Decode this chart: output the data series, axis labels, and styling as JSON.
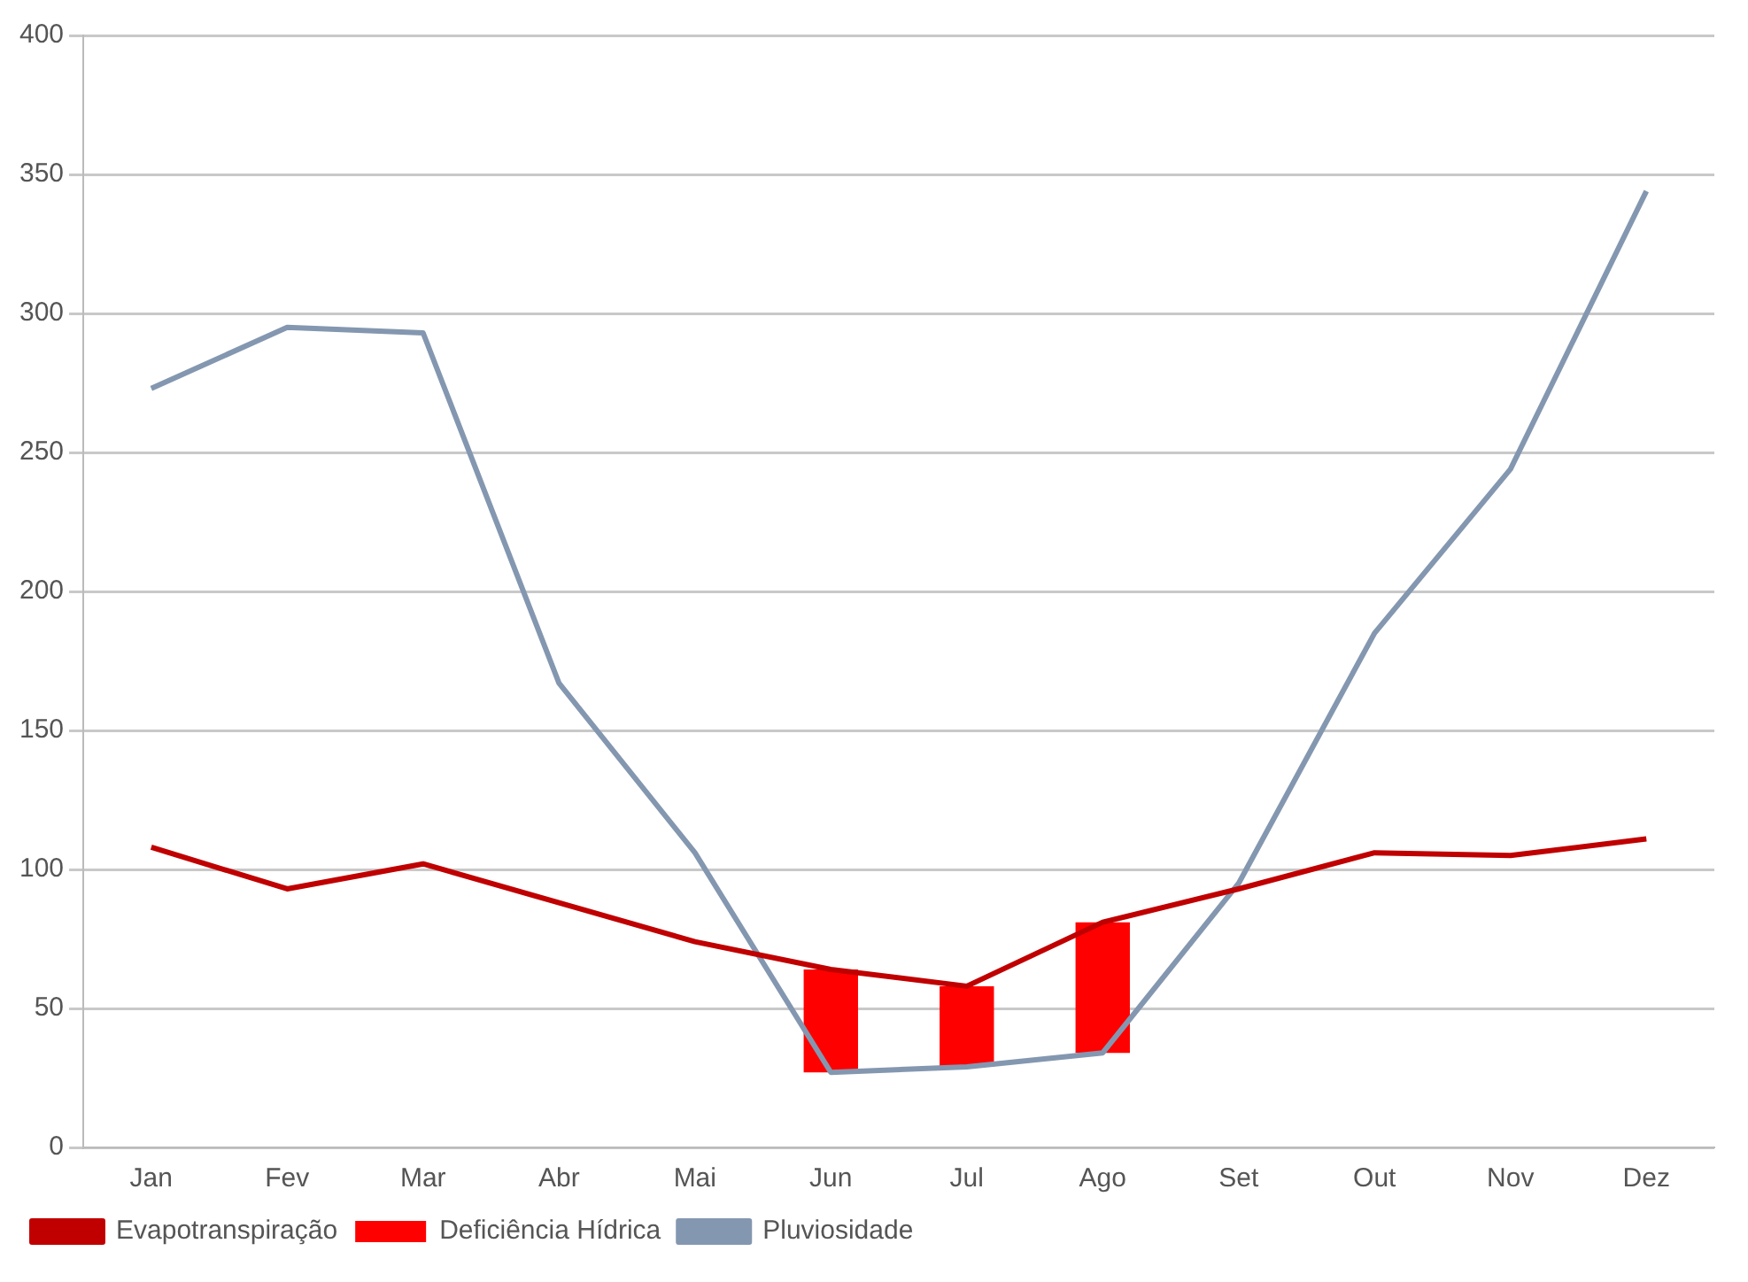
{
  "chart_data": {
    "type": "line",
    "categories": [
      "Jan",
      "Fev",
      "Mar",
      "Abr",
      "Mai",
      "Jun",
      "Jul",
      "Ago",
      "Set",
      "Out",
      "Nov",
      "Dez"
    ],
    "series": [
      {
        "name": "Evapotranspiração",
        "color": "#c00000",
        "values": [
          108,
          93,
          102,
          88,
          74,
          64,
          58,
          81,
          93,
          106,
          105,
          111
        ]
      },
      {
        "name": "Deficiência Hídrica",
        "type": "bar",
        "color": "#ff0000",
        "base": [
          null,
          null,
          null,
          null,
          null,
          27,
          29,
          34,
          null,
          null,
          null,
          null
        ],
        "values": [
          null,
          null,
          null,
          null,
          null,
          37,
          29,
          47,
          null,
          null,
          null,
          null
        ]
      },
      {
        "name": "Pluviosidade",
        "color": "#8497b0",
        "values": [
          273,
          295,
          293,
          167,
          106,
          27,
          29,
          34,
          95,
          185,
          244,
          344
        ]
      }
    ],
    "ylim": [
      0,
      400
    ],
    "yticks": [
      0,
      50,
      100,
      150,
      200,
      250,
      300,
      350,
      400
    ],
    "grid": "y",
    "legend": "bottom",
    "marker": "none"
  }
}
